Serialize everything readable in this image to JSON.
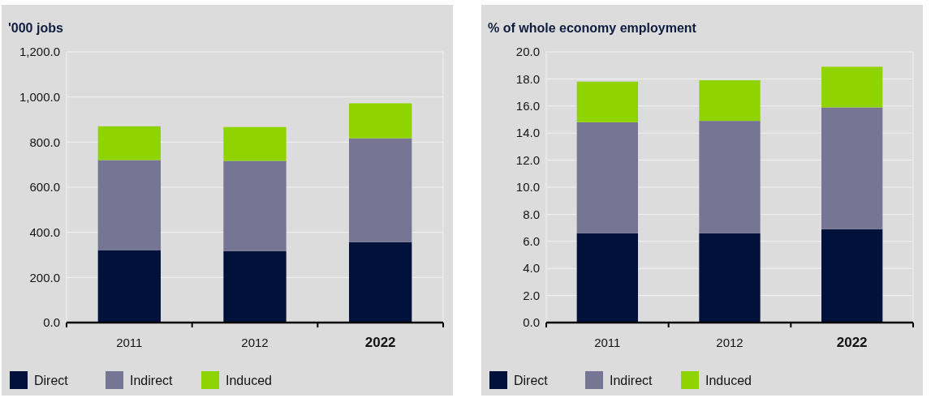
{
  "chart_data": [
    {
      "type": "bar",
      "title": "'000 jobs",
      "categories": [
        "2011",
        "2012",
        "2022"
      ],
      "stacked": true,
      "ylim": [
        0,
        1200
      ],
      "yticks": [
        {
          "value": 0,
          "label": "0.0"
        },
        {
          "value": 200,
          "label": "200.0"
        },
        {
          "value": 400,
          "label": "400.0"
        },
        {
          "value": 600,
          "label": "600.0"
        },
        {
          "value": 800,
          "label": "800.0"
        },
        {
          "value": 1000,
          "label": "1,000.0"
        },
        {
          "value": 1200,
          "label": "1,200.0"
        }
      ],
      "grid": "y",
      "legend": "bottom",
      "series": [
        {
          "name": "Direct",
          "color": "#00113c",
          "values": [
            320,
            317,
            357
          ]
        },
        {
          "name": "Indirect",
          "color": "#767594",
          "values": [
            400,
            400,
            460
          ]
        },
        {
          "name": "Induced",
          "color": "#8fd400",
          "values": [
            150,
            150,
            155
          ]
        }
      ]
    },
    {
      "type": "bar",
      "title": "% of whole economy employment",
      "categories": [
        "2011",
        "2012",
        "2022"
      ],
      "stacked": true,
      "ylim": [
        0,
        20
      ],
      "yticks": [
        {
          "value": 0,
          "label": "0.0"
        },
        {
          "value": 2,
          "label": "2.0"
        },
        {
          "value": 4,
          "label": "4.0"
        },
        {
          "value": 6,
          "label": "6.0"
        },
        {
          "value": 8,
          "label": "8.0"
        },
        {
          "value": 10,
          "label": "10.0"
        },
        {
          "value": 12,
          "label": "12.0"
        },
        {
          "value": 14,
          "label": "14.0"
        },
        {
          "value": 16,
          "label": "16.0"
        },
        {
          "value": 18,
          "label": "18.0"
        },
        {
          "value": 20,
          "label": "20.0"
        }
      ],
      "grid": "y",
      "legend": "bottom",
      "series": [
        {
          "name": "Direct",
          "color": "#00113c",
          "values": [
            6.6,
            6.6,
            6.9
          ]
        },
        {
          "name": "Indirect",
          "color": "#767594",
          "values": [
            8.2,
            8.3,
            9.0
          ]
        },
        {
          "name": "Induced",
          "color": "#8fd400",
          "values": [
            3.0,
            3.0,
            3.0
          ]
        }
      ]
    }
  ]
}
